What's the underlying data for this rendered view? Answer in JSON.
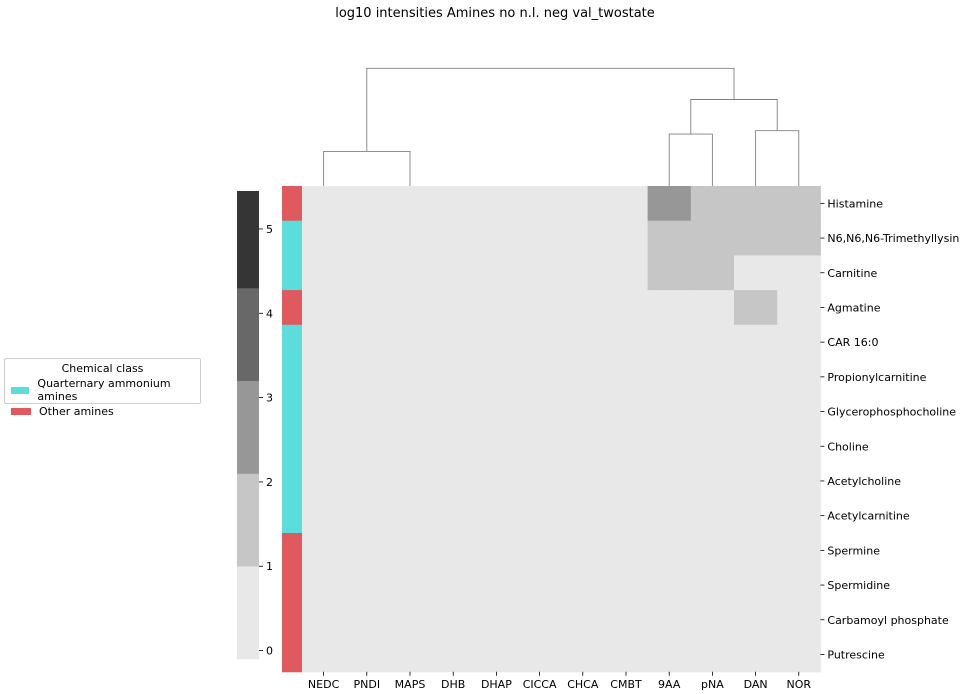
{
  "chart_data": {
    "type": "heatmap",
    "title": "log10 intensities Amines no n.l. neg val_twostate",
    "columns": [
      "NEDC",
      "PNDI",
      "MAPS",
      "DHB",
      "DHAP",
      "CICCA",
      "CHCA",
      "CMBT",
      "9AA",
      "pNA",
      "DAN",
      "NOR"
    ],
    "rows": [
      "Histamine",
      "N6,N6,N6-Trimethyllysine",
      "Carnitine",
      "Agmatine",
      "CAR 16:0",
      "Propionylcarnitine",
      "Glycerophosphocholine",
      "Choline",
      "Acetylcholine",
      "Acetylcarnitine",
      "Spermine",
      "Spermidine",
      "Carbamoyl phosphate",
      "Putrescine"
    ],
    "values": [
      [
        0,
        0,
        0,
        0,
        0,
        0,
        0,
        0,
        3,
        2,
        2,
        2
      ],
      [
        0,
        0,
        0,
        0,
        0,
        0,
        0,
        0,
        2,
        2,
        2,
        2
      ],
      [
        0,
        0,
        0,
        0,
        0,
        0,
        0,
        0,
        2,
        2,
        0,
        0
      ],
      [
        0,
        0,
        0,
        0,
        0,
        0,
        0,
        0,
        0,
        0,
        2,
        0
      ],
      [
        0,
        0,
        0,
        0,
        0,
        0,
        0,
        0,
        0,
        0,
        0,
        0
      ],
      [
        0,
        0,
        0,
        0,
        0,
        0,
        0,
        0,
        0,
        0,
        0,
        0
      ],
      [
        0,
        0,
        0,
        0,
        0,
        0,
        0,
        0,
        0,
        0,
        0,
        0
      ],
      [
        0,
        0,
        0,
        0,
        0,
        0,
        0,
        0,
        0,
        0,
        0,
        0
      ],
      [
        0,
        0,
        0,
        0,
        0,
        0,
        0,
        0,
        0,
        0,
        0,
        0
      ],
      [
        0,
        0,
        0,
        0,
        0,
        0,
        0,
        0,
        0,
        0,
        0,
        0
      ],
      [
        0,
        0,
        0,
        0,
        0,
        0,
        0,
        0,
        0,
        0,
        0,
        0
      ],
      [
        0,
        0,
        0,
        0,
        0,
        0,
        0,
        0,
        0,
        0,
        0,
        0
      ],
      [
        0,
        0,
        0,
        0,
        0,
        0,
        0,
        0,
        0,
        0,
        0,
        0
      ],
      [
        0,
        0,
        0,
        0,
        0,
        0,
        0,
        0,
        0,
        0,
        0,
        0
      ]
    ],
    "row_class": [
      "Other amines",
      "Quarternary ammonium amines",
      "Quarternary ammonium amines",
      "Other amines",
      "Quarternary ammonium amines",
      "Quarternary ammonium amines",
      "Quarternary ammonium amines",
      "Quarternary ammonium amines",
      "Quarternary ammonium amines",
      "Quarternary ammonium amines",
      "Other amines",
      "Other amines",
      "Other amines",
      "Other amines"
    ],
    "colorbar": {
      "ticks": [
        0,
        1,
        2,
        3,
        4,
        5
      ],
      "range": [
        -0.1,
        5.45
      ],
      "levels": [
        {
          "from": -0.1,
          "to": 1.0,
          "color": "#e8e8e8"
        },
        {
          "from": 1.0,
          "to": 2.1,
          "color": "#c6c6c6"
        },
        {
          "from": 2.1,
          "to": 3.2,
          "color": "#979797"
        },
        {
          "from": 3.2,
          "to": 4.3,
          "color": "#686868"
        },
        {
          "from": 4.3,
          "to": 5.45,
          "color": "#353535"
        }
      ]
    },
    "legend": {
      "title": "Chemical class",
      "placement": "left",
      "entries": [
        {
          "label": "Quarternary ammonium amines",
          "color": "#5cdcdb"
        },
        {
          "label": "Other amines",
          "color": "#df5a5e"
        }
      ]
    },
    "dendrogram": {
      "links": [
        {
          "left": "NEDC",
          "right": "MAPS",
          "height": 1
        },
        {
          "left": "9AA",
          "right": "pNA",
          "height": 1.5
        },
        {
          "left": "DAN",
          "right": "NOR",
          "height": 1.6
        },
        {
          "left": "9AA+pNA",
          "right": "DAN+NOR",
          "height": 2.5
        },
        {
          "left": "NEDC+MAPS",
          "right": "9AA..NOR",
          "height": 3.4
        }
      ]
    }
  }
}
